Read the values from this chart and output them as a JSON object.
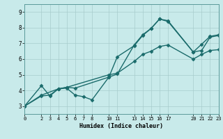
{
  "title": "",
  "xlabel": "Humidex (Indice chaleur)",
  "ylabel": "",
  "bg_color": "#c8eaea",
  "line_color": "#1a6b6b",
  "marker": "D",
  "markersize": 2.5,
  "linewidth": 1.0,
  "xlim": [
    0,
    23
  ],
  "ylim": [
    2.5,
    9.5
  ],
  "xticks": [
    0,
    2,
    3,
    4,
    5,
    6,
    7,
    8,
    10,
    11,
    13,
    14,
    15,
    16,
    17,
    20,
    21,
    22,
    23
  ],
  "yticks": [
    3,
    4,
    5,
    6,
    7,
    8,
    9
  ],
  "grid_color": "#a8cccc",
  "series": [
    {
      "x": [
        0,
        2,
        3,
        4,
        5,
        6,
        10,
        11,
        13,
        14,
        15,
        16,
        17,
        20,
        21,
        22,
        23
      ],
      "y": [
        3.0,
        4.3,
        3.65,
        4.1,
        4.2,
        4.15,
        4.85,
        5.05,
        6.9,
        7.55,
        7.95,
        8.55,
        8.45,
        6.45,
        6.95,
        7.45,
        7.55
      ]
    },
    {
      "x": [
        0,
        2,
        3,
        4,
        5,
        6,
        7,
        8,
        10,
        11,
        13,
        14,
        15,
        16,
        17,
        20,
        21,
        22,
        23
      ],
      "y": [
        3.0,
        3.65,
        3.7,
        4.1,
        4.15,
        3.7,
        3.6,
        3.4,
        4.85,
        6.15,
        6.85,
        7.5,
        7.95,
        8.55,
        8.4,
        6.45,
        6.55,
        7.4,
        7.5
      ]
    },
    {
      "x": [
        0,
        2,
        4,
        5,
        10,
        11,
        13,
        14,
        15,
        16,
        17,
        20,
        21,
        22,
        23
      ],
      "y": [
        3.0,
        3.7,
        4.1,
        4.2,
        5.0,
        5.1,
        5.85,
        6.3,
        6.5,
        6.8,
        6.9,
        6.0,
        6.3,
        6.55,
        6.6
      ]
    }
  ]
}
